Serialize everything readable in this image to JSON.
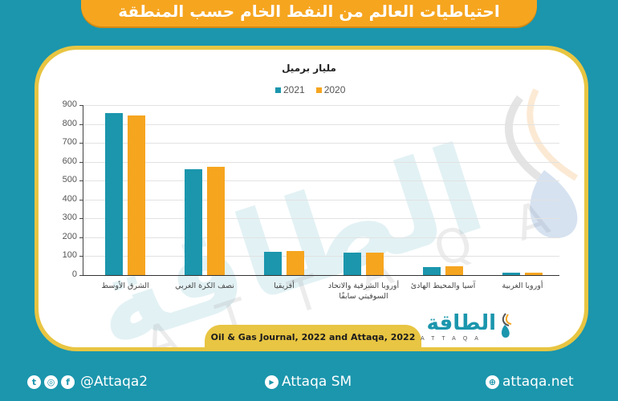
{
  "header": {
    "title": "احتياطيات العالم من النفط الخام حسب المنطقة"
  },
  "chart_data": {
    "type": "bar",
    "title": "مليار برميل",
    "xlabel": "",
    "ylabel": "",
    "ylim": [
      0,
      900
    ],
    "yticks": [
      0,
      100,
      200,
      300,
      400,
      500,
      600,
      700,
      800,
      900
    ],
    "grid": true,
    "legend_position": "top",
    "categories": [
      "الشرق الأوسط",
      "نصف الكرة الغربي",
      "أفريقيا",
      "أوروبا الشرقية والاتحاد السوفيتي سابقًا",
      "آسيا والمحيط الهادئ",
      "أوروبا الغربية"
    ],
    "series": [
      {
        "name": "2021",
        "color": "#1b96ad",
        "values": [
          857,
          561,
          123,
          120,
          44,
          11
        ]
      },
      {
        "name": "2020",
        "color": "#f6a51f",
        "values": [
          845,
          574,
          126,
          120,
          45,
          13
        ]
      }
    ]
  },
  "legend": [
    {
      "label": "2021",
      "color": "#1b96ad"
    },
    {
      "label": "2020",
      "color": "#f6a51f"
    }
  ],
  "source": "Oil & Gas Journal, 2022 and Attaqa, 2022",
  "logo": {
    "arabic": "الطاقة",
    "latin": "ATTAQA"
  },
  "footer": {
    "social_handle": "@Attaqa2",
    "youtube": "Attaqa SM",
    "website": "attaqa.net",
    "icons": [
      "twitter-icon",
      "instagram-icon",
      "facebook-icon",
      "youtube-icon",
      "globe-icon"
    ]
  },
  "colors": {
    "background": "#1b96ad",
    "banner": "#f6a51f",
    "panel_border": "#e8c542"
  }
}
